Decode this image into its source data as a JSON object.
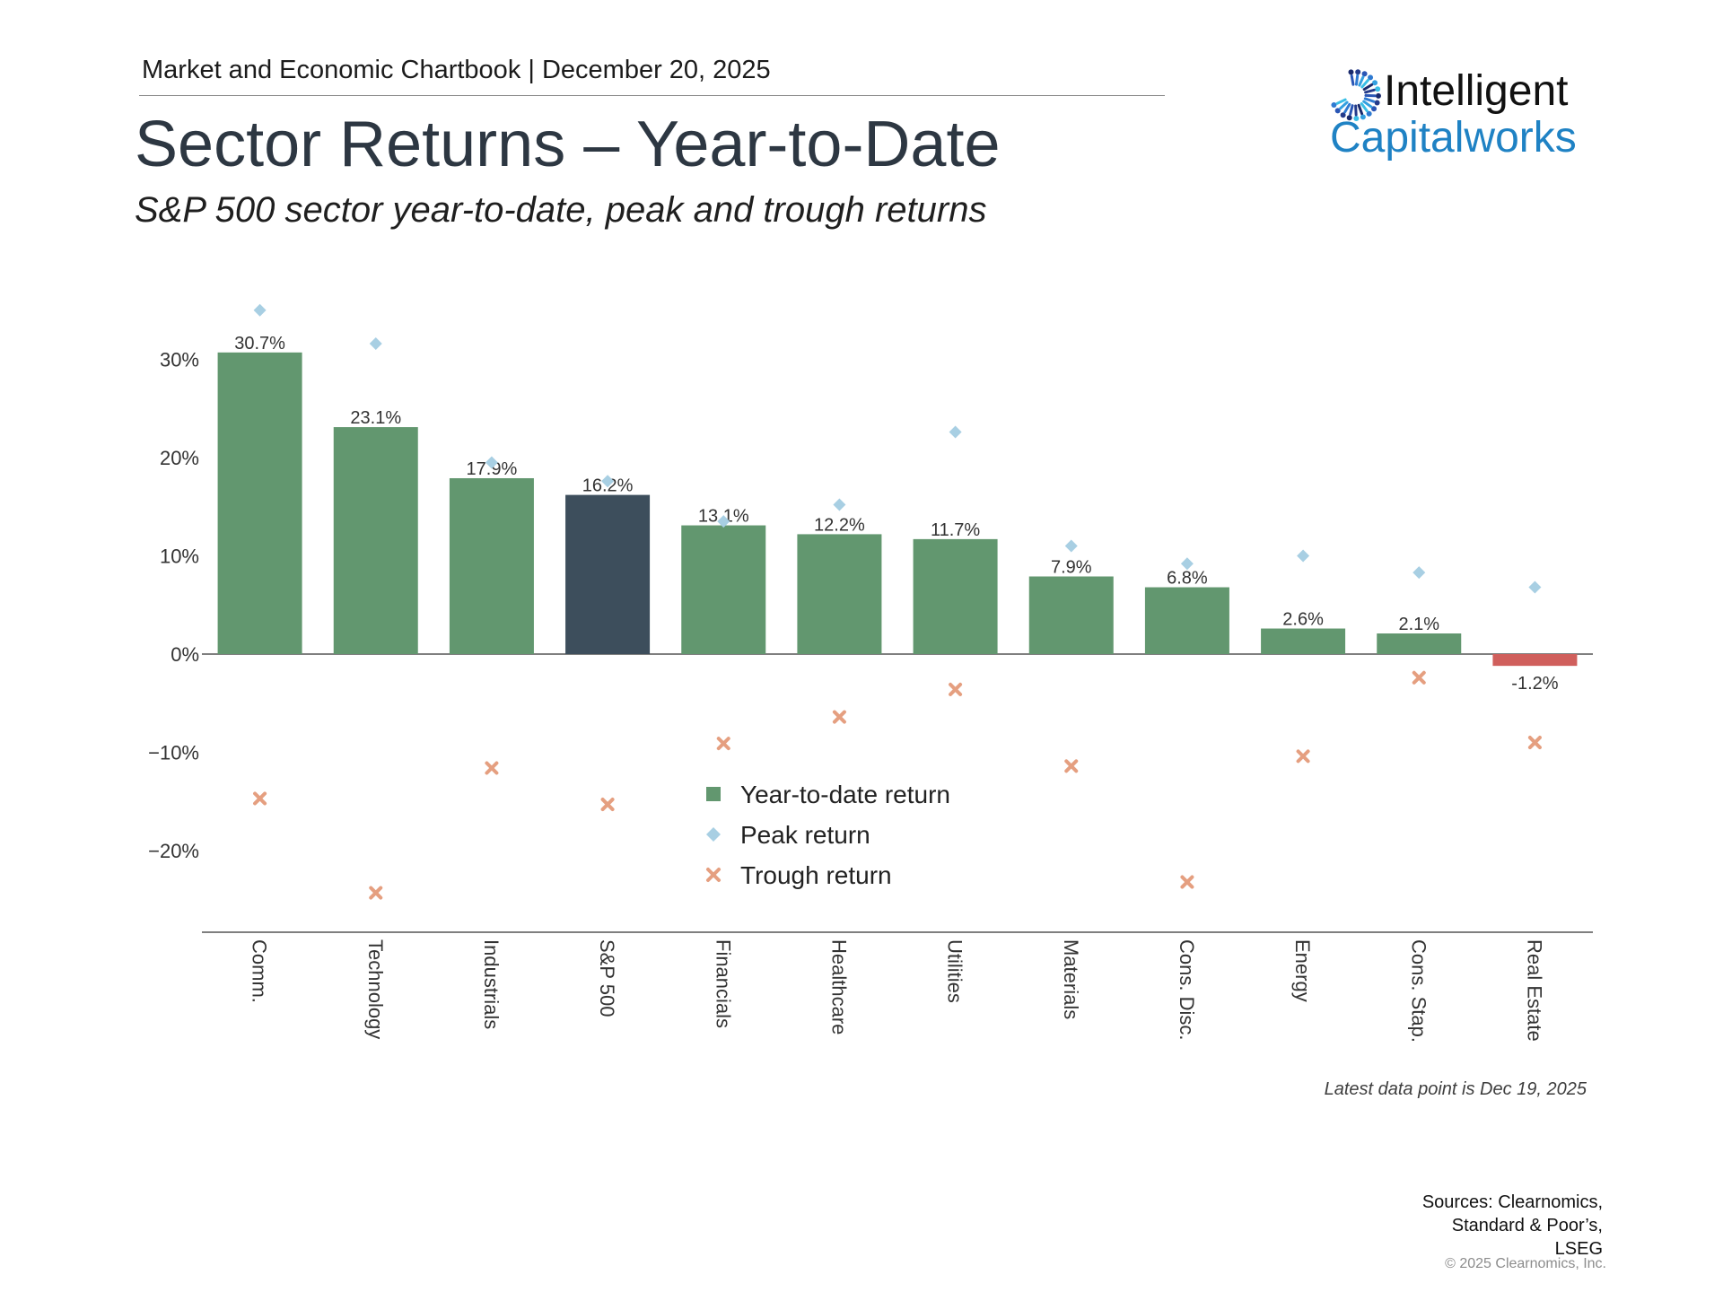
{
  "header": {
    "chartbook_line": "Market and Economic Chartbook | December 20, 2025",
    "title": "Sector Returns – Year-to-Date",
    "subtitle": "S&P 500 sector year-to-date, peak and trough returns"
  },
  "logo": {
    "word1": "Intelligent",
    "word2": "Capitalworks",
    "icon": "sunburst-logo-icon"
  },
  "chart_data": {
    "type": "bar",
    "title": "",
    "xlabel": "",
    "ylabel": "",
    "ylim": [
      -28,
      38
    ],
    "y_ticks": [
      -20,
      -10,
      0,
      10,
      20,
      30
    ],
    "y_tick_labels": [
      "−20%",
      "−10%",
      "0%",
      "10%",
      "20%",
      "30%"
    ],
    "grid": false,
    "legend_position": "center",
    "categories": [
      "Comm.",
      "Technology",
      "Industrials",
      "S&P 500",
      "Financials",
      "Healthcare",
      "Utilities",
      "Materials",
      "Cons. Disc.",
      "Energy",
      "Cons. Stap.",
      "Real Estate"
    ],
    "series": [
      {
        "name": "Year-to-date return",
        "marker": "bar",
        "values": [
          30.7,
          23.1,
          17.9,
          16.2,
          13.1,
          12.2,
          11.7,
          7.9,
          6.8,
          2.6,
          2.1,
          -1.2
        ],
        "labels": [
          "30.7%",
          "23.1%",
          "17.9%",
          "16.2%",
          "13.1%",
          "12.2%",
          "11.7%",
          "7.9%",
          "6.8%",
          "2.6%",
          "2.1%",
          "-1.2%"
        ]
      },
      {
        "name": "Peak return",
        "marker": "diamond",
        "values": [
          35.0,
          31.6,
          19.5,
          17.6,
          13.5,
          15.2,
          22.6,
          11.0,
          9.2,
          10.0,
          8.3,
          6.8
        ]
      },
      {
        "name": "Trough return",
        "marker": "x",
        "values": [
          -14.7,
          -24.3,
          -11.6,
          -15.3,
          -9.1,
          -6.4,
          -3.6,
          -11.4,
          -23.2,
          -10.4,
          -2.4,
          -9.0
        ]
      }
    ],
    "colors": {
      "bar": "#62976f",
      "bar_highlight": "#3d4e5c",
      "bar_negative": "#d05f5c",
      "peak": "#a8cfe3",
      "trough": "#e59f80",
      "axis": "#555555",
      "tick_text": "#333333"
    },
    "highlight_category": "S&P 500"
  },
  "footer": {
    "note": "Latest data point is Dec 19, 2025",
    "sources": [
      "Sources: Clearnomics,",
      "Standard & Poor’s,",
      "LSEG"
    ],
    "copyright": "© 2025 Clearnomics, Inc."
  }
}
